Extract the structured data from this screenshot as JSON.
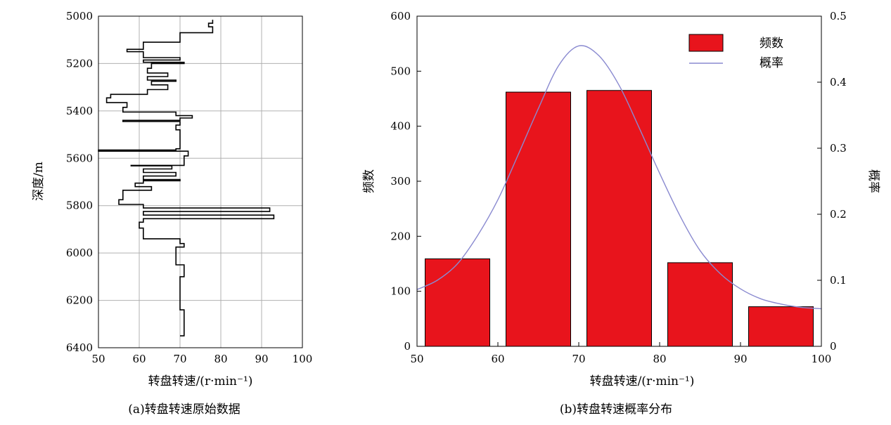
{
  "chart_data": [
    {
      "type": "line",
      "caption": "(a)转盘转速原始数据",
      "xlabel": "转盘转速/(r·min⁻¹)",
      "ylabel": "深度/m",
      "xlim": [
        50,
        100
      ],
      "ylim": [
        5000,
        6400
      ],
      "y_inverted": true,
      "xticks": [
        50,
        60,
        70,
        80,
        90,
        100
      ],
      "yticks": [
        5000,
        5200,
        5400,
        5600,
        5800,
        6000,
        6200,
        6400
      ],
      "grid": true,
      "series": [
        {
          "color": "#000000",
          "points": [
            [
              78,
              5015
            ],
            [
              78,
              5030
            ],
            [
              77,
              5030
            ],
            [
              77,
              5045
            ],
            [
              78,
              5045
            ],
            [
              78,
              5070
            ],
            [
              70,
              5070
            ],
            [
              70,
              5110
            ],
            [
              61,
              5110
            ],
            [
              61,
              5140
            ],
            [
              57,
              5140
            ],
            [
              57,
              5150
            ],
            [
              61,
              5150
            ],
            [
              61,
              5175
            ],
            [
              70,
              5175
            ],
            [
              70,
              5185
            ],
            [
              61,
              5185
            ],
            [
              61,
              5195
            ],
            [
              71,
              5195
            ],
            [
              71,
              5200
            ],
            [
              63,
              5200
            ],
            [
              63,
              5220
            ],
            [
              62,
              5220
            ],
            [
              62,
              5240
            ],
            [
              67,
              5240
            ],
            [
              67,
              5255
            ],
            [
              62,
              5255
            ],
            [
              62,
              5270
            ],
            [
              69,
              5270
            ],
            [
              69,
              5275
            ],
            [
              63,
              5275
            ],
            [
              63,
              5290
            ],
            [
              67,
              5290
            ],
            [
              67,
              5310
            ],
            [
              62,
              5310
            ],
            [
              62,
              5330
            ],
            [
              53,
              5330
            ],
            [
              53,
              5345
            ],
            [
              52,
              5345
            ],
            [
              52,
              5365
            ],
            [
              57,
              5365
            ],
            [
              57,
              5385
            ],
            [
              56,
              5385
            ],
            [
              56,
              5405
            ],
            [
              69,
              5405
            ],
            [
              69,
              5420
            ],
            [
              73,
              5420
            ],
            [
              73,
              5430
            ],
            [
              70,
              5430
            ],
            [
              70,
              5440
            ],
            [
              56,
              5440
            ],
            [
              56,
              5445
            ],
            [
              70,
              5445
            ],
            [
              70,
              5460
            ],
            [
              69,
              5460
            ],
            [
              69,
              5480
            ],
            [
              70,
              5480
            ],
            [
              70,
              5560
            ],
            [
              69,
              5560
            ],
            [
              69,
              5565
            ],
            [
              50,
              5565
            ],
            [
              50,
              5570
            ],
            [
              72,
              5570
            ],
            [
              72,
              5590
            ],
            [
              71,
              5590
            ],
            [
              71,
              5630
            ],
            [
              58,
              5630
            ],
            [
              58,
              5632
            ],
            [
              68,
              5632
            ],
            [
              68,
              5645
            ],
            [
              61,
              5645
            ],
            [
              61,
              5660
            ],
            [
              69,
              5660
            ],
            [
              69,
              5675
            ],
            [
              61,
              5675
            ],
            [
              61,
              5690
            ],
            [
              70,
              5690
            ],
            [
              70,
              5695
            ],
            [
              61,
              5695
            ],
            [
              61,
              5705
            ],
            [
              59,
              5705
            ],
            [
              59,
              5720
            ],
            [
              63,
              5720
            ],
            [
              63,
              5735
            ],
            [
              56,
              5735
            ],
            [
              56,
              5775
            ],
            [
              55,
              5775
            ],
            [
              55,
              5795
            ],
            [
              61,
              5795
            ],
            [
              61,
              5810
            ],
            [
              92,
              5810
            ],
            [
              92,
              5825
            ],
            [
              61,
              5825
            ],
            [
              61,
              5840
            ],
            [
              93,
              5840
            ],
            [
              93,
              5855
            ],
            [
              61,
              5855
            ],
            [
              61,
              5870
            ],
            [
              60,
              5870
            ],
            [
              60,
              5895
            ],
            [
              61,
              5895
            ],
            [
              61,
              5940
            ],
            [
              70,
              5940
            ],
            [
              70,
              5960
            ],
            [
              71,
              5960
            ],
            [
              71,
              5975
            ],
            [
              69,
              5975
            ],
            [
              69,
              6050
            ],
            [
              71,
              6050
            ],
            [
              71,
              6100
            ],
            [
              70,
              6100
            ],
            [
              70,
              6240
            ],
            [
              71,
              6240
            ],
            [
              71,
              6350
            ],
            [
              70,
              6350
            ]
          ]
        }
      ]
    },
    {
      "type": "bar",
      "caption": "(b)转盘转速概率分布",
      "xlabel": "转盘转速/(r·min⁻¹)",
      "ylabel": "频数",
      "y2label": "概率",
      "xlim": [
        50,
        100
      ],
      "ylim": [
        0,
        600
      ],
      "y2lim": [
        0,
        0.5
      ],
      "xticks": [
        50,
        60,
        70,
        80,
        90,
        100
      ],
      "yticks": [
        0,
        100,
        200,
        300,
        400,
        500,
        600
      ],
      "y2ticks": [
        0,
        0.1,
        0.2,
        0.3,
        0.4,
        0.5
      ],
      "y2ticklabels": [
        "0",
        "0.1",
        "0.2",
        "0.3",
        "0.4",
        "0.5"
      ],
      "legend": {
        "position": "top-right"
      },
      "series": [
        {
          "name": "频数",
          "type": "bar",
          "color": "#e8141c",
          "bins": [
            [
              51,
              59
            ],
            [
              61,
              69
            ],
            [
              71,
              79
            ],
            [
              81,
              89
            ],
            [
              91,
              99
            ]
          ],
          "values": [
            159,
            462,
            465,
            152,
            72
          ]
        },
        {
          "name": "概率",
          "type": "line",
          "color": "#8a8ad0",
          "x": [
            50,
            52.5,
            55,
            57.5,
            60,
            62.5,
            65,
            67.5,
            70,
            72.5,
            75,
            77.5,
            80,
            82.5,
            85,
            87.5,
            90,
            92.5,
            95,
            97.5,
            100
          ],
          "values": [
            0.086,
            0.1,
            0.125,
            0.168,
            0.222,
            0.29,
            0.36,
            0.425,
            0.455,
            0.44,
            0.395,
            0.33,
            0.262,
            0.198,
            0.145,
            0.11,
            0.087,
            0.072,
            0.064,
            0.059,
            0.057
          ]
        }
      ]
    }
  ]
}
